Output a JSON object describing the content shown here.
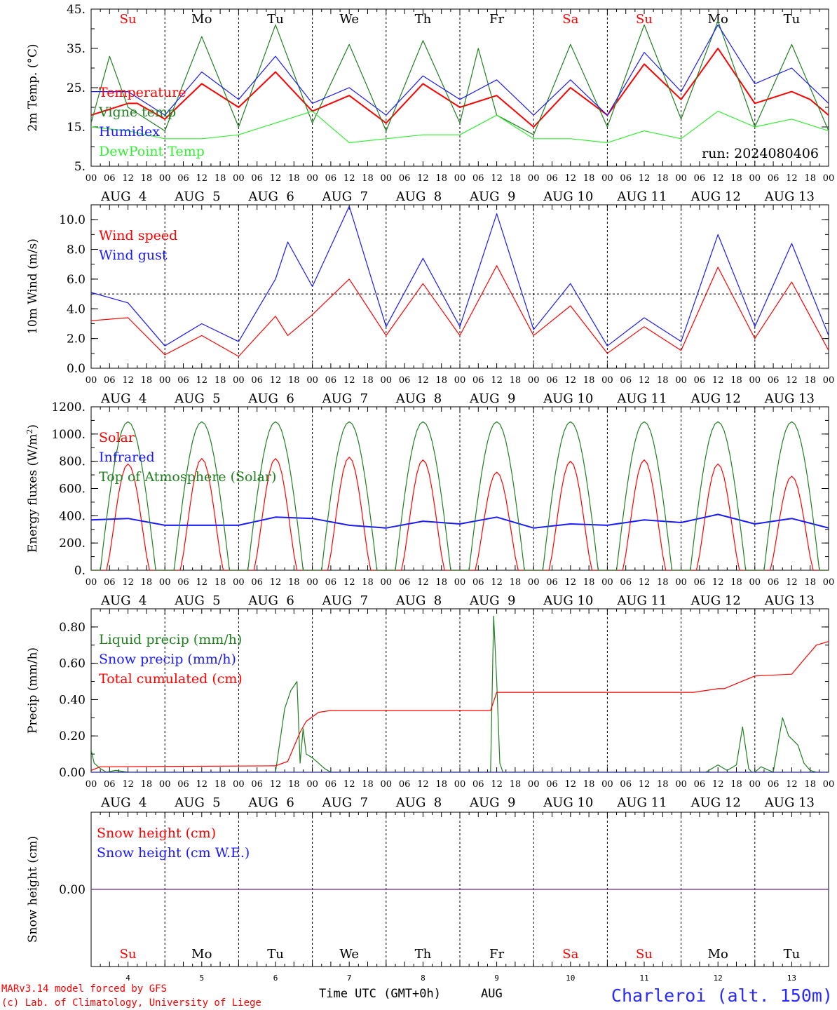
{
  "colors": {
    "red": "#ff0000",
    "green": "#208020",
    "blue": "#1a1aff",
    "lightgreen": "#33ee33",
    "purple": "#8040a0",
    "axis": "#000000",
    "station": "#2a2aff"
  },
  "days": {
    "labels": [
      "Su",
      "Mo",
      "Tu",
      "We",
      "Th",
      "Fr",
      "Sa",
      "Su",
      "Mo",
      "Tu"
    ],
    "label_colors": [
      "red",
      "black",
      "black",
      "black",
      "black",
      "black",
      "red",
      "red",
      "black",
      "black"
    ],
    "dates": [
      "AUG  4",
      "AUG  5",
      "AUG  6",
      "AUG  7",
      "AUG  8",
      "AUG  9",
      "AUG 10",
      "AUG 11",
      "AUG 12",
      "AUG 13"
    ],
    "day_numbers": [
      "4",
      "5",
      "6",
      "7",
      "8",
      "9",
      "10",
      "11",
      "12",
      "13"
    ]
  },
  "hour_ticks": [
    "00",
    "06",
    "12",
    "18"
  ],
  "run_label": "run: 2024080406",
  "footer": {
    "model": "MARv3.14 model forced by GFS",
    "copyright": "(c) Lab. of Climatology, University of Liege",
    "xlabel": "Time UTC (GMT+0h)",
    "month": "AUG",
    "station": "Charleroi (alt. 150m)"
  },
  "chart_data": [
    {
      "type": "line",
      "ylabel": "2m Temp. (°C)",
      "ylim": [
        5,
        45
      ],
      "yticks": [
        "5.",
        "15.",
        "25.",
        "35.",
        "45."
      ],
      "legend": [
        "Temperature",
        "Vigne temp",
        "Humidex",
        "DewPoint Temp"
      ],
      "x": "hours since AUG 4 00 UTC",
      "series": [
        {
          "name": "Temperature",
          "color": "red",
          "x": [
            0,
            12,
            15,
            24,
            36,
            48,
            60,
            72,
            84,
            96,
            108,
            120,
            132,
            144,
            156,
            168,
            180,
            192,
            204,
            216,
            228,
            234,
            240
          ],
          "values": [
            18,
            21,
            21,
            17,
            26,
            20,
            29,
            19,
            23,
            16,
            26,
            20,
            23,
            15,
            25,
            18,
            31,
            22,
            35,
            21,
            24,
            22,
            18
          ]
        },
        {
          "name": "Vigne temp",
          "color": "green",
          "x": [
            0,
            6,
            12,
            24,
            36,
            48,
            60,
            72,
            84,
            96,
            108,
            120,
            126,
            132,
            144,
            156,
            168,
            180,
            192,
            204,
            216,
            228,
            240
          ],
          "values": [
            16,
            33,
            20,
            14,
            38,
            15,
            41,
            16,
            36,
            14,
            37,
            16,
            35,
            18,
            13,
            36,
            15,
            41,
            17,
            42,
            15,
            36,
            14
          ]
        },
        {
          "name": "Humidex",
          "color": "blue",
          "x": [
            0,
            12,
            24,
            36,
            48,
            60,
            72,
            84,
            96,
            108,
            120,
            132,
            144,
            156,
            168,
            180,
            192,
            204,
            216,
            228,
            240
          ],
          "values": [
            24,
            24,
            18,
            29,
            22,
            33,
            21,
            25,
            18,
            28,
            22,
            27,
            18,
            27,
            18,
            34,
            24,
            41,
            26,
            30,
            21
          ]
        },
        {
          "name": "DewPoint Temp",
          "color": "lightgreen",
          "x": [
            0,
            12,
            24,
            36,
            48,
            60,
            72,
            84,
            96,
            108,
            120,
            132,
            144,
            156,
            168,
            180,
            192,
            204,
            216,
            228,
            240
          ],
          "values": [
            15,
            14,
            12,
            12,
            13,
            16,
            19,
            11,
            12,
            13,
            13,
            18,
            12,
            12,
            11,
            14,
            12,
            19,
            15,
            17,
            14
          ]
        }
      ]
    },
    {
      "type": "line",
      "ylabel": "10m Wind (m/s)",
      "ylim": [
        0,
        11
      ],
      "yticks": [
        "0.0",
        "2.0",
        "4.0",
        "6.0",
        "8.0",
        "10.0"
      ],
      "reference_line": 5,
      "legend": [
        "Wind speed",
        "Wind gust"
      ],
      "series": [
        {
          "name": "Wind speed",
          "color": "red",
          "x": [
            0,
            12,
            24,
            36,
            48,
            60,
            64,
            72,
            84,
            96,
            108,
            120,
            132,
            144,
            156,
            168,
            180,
            192,
            204,
            216,
            228,
            240
          ],
          "values": [
            3.2,
            3.4,
            0.9,
            2.2,
            0.8,
            3.5,
            2.2,
            3.6,
            6.0,
            2.2,
            5.7,
            2.2,
            6.9,
            2.2,
            4.2,
            1.0,
            2.8,
            1.2,
            6.8,
            2.0,
            5.8,
            1.2
          ]
        },
        {
          "name": "Wind gust",
          "color": "blue",
          "x": [
            0,
            12,
            24,
            36,
            48,
            60,
            64,
            72,
            84,
            96,
            108,
            120,
            132,
            144,
            156,
            168,
            180,
            192,
            204,
            216,
            228,
            240
          ],
          "values": [
            5.1,
            4.4,
            1.5,
            3.0,
            1.8,
            6.0,
            8.5,
            5.5,
            10.9,
            2.8,
            7.4,
            2.8,
            10.4,
            2.6,
            5.7,
            1.5,
            3.4,
            1.8,
            9.0,
            2.8,
            8.4,
            2.2
          ]
        }
      ]
    },
    {
      "type": "line",
      "ylabel": "Energy fluxes (W/m²)",
      "ylim": [
        0,
        1200
      ],
      "yticks": [
        "0.",
        "200.",
        "400.",
        "600.",
        "800.",
        "1000.",
        "1200."
      ],
      "legend": [
        "Solar",
        "Infrared",
        "Top of Atmosphere (Solar)"
      ],
      "solar_peaks": [
        780,
        820,
        820,
        830,
        810,
        720,
        800,
        810,
        780,
        690
      ],
      "toa_peak": 1090,
      "series": [
        {
          "name": "Solar",
          "color": "red",
          "x": [
            0,
            12,
            24,
            36,
            48,
            60,
            72,
            84,
            96,
            108,
            120,
            132,
            144,
            156,
            168,
            180,
            192,
            204,
            216,
            228,
            240
          ],
          "values": [
            0,
            780,
            0,
            820,
            0,
            820,
            0,
            830,
            0,
            810,
            0,
            720,
            0,
            800,
            0,
            810,
            0,
            780,
            0,
            690,
            0
          ]
        },
        {
          "name": "Infrared",
          "color": "blue",
          "x": [
            0,
            12,
            24,
            48,
            60,
            72,
            84,
            96,
            108,
            120,
            132,
            144,
            156,
            168,
            180,
            192,
            204,
            216,
            228,
            240
          ],
          "values": [
            370,
            380,
            330,
            330,
            390,
            380,
            330,
            310,
            360,
            340,
            390,
            310,
            340,
            330,
            370,
            350,
            410,
            340,
            380,
            310
          ]
        },
        {
          "name": "Top of Atmosphere (Solar)",
          "color": "green",
          "x": [
            0,
            12,
            24,
            36,
            48,
            60,
            72,
            84,
            96,
            108,
            120,
            132,
            144,
            156,
            168,
            180,
            192,
            204,
            216,
            228,
            240
          ],
          "values": [
            0,
            1090,
            0,
            1090,
            0,
            1090,
            0,
            1090,
            0,
            1085,
            0,
            1085,
            0,
            1080,
            0,
            1080,
            0,
            1075,
            0,
            1075,
            0
          ]
        }
      ]
    },
    {
      "type": "line",
      "ylabel": "Precip (mm/h)",
      "ylim": [
        0,
        0.9
      ],
      "yticks": [
        "0.00",
        "0.20",
        "0.40",
        "0.60",
        "0.80"
      ],
      "legend": [
        "Liquid precip (mm/h)",
        "Snow precip (mm/h)",
        "Total cumulated (cm)"
      ],
      "series": [
        {
          "name": "Liquid precip (mm/h)",
          "color": "green",
          "x": [
            0,
            1,
            3,
            5,
            8,
            12,
            60,
            63,
            65,
            67,
            68,
            69,
            70,
            72,
            74,
            76,
            78,
            80,
            130,
            131,
            132,
            133,
            134,
            200,
            204,
            207,
            210,
            212,
            214,
            215,
            216,
            218,
            222,
            225,
            227,
            230,
            232,
            234,
            236,
            238,
            240
          ],
          "values": [
            0.12,
            0.05,
            0.02,
            0.0,
            0.01,
            0.0,
            0.0,
            0.35,
            0.45,
            0.5,
            0.05,
            0.24,
            0.1,
            0.08,
            0.05,
            0.02,
            0.0,
            0.0,
            0.0,
            0.86,
            0.5,
            0.05,
            0.0,
            0.0,
            0.04,
            0.01,
            0.04,
            0.25,
            0.02,
            0.0,
            0.0,
            0.03,
            0.0,
            0.3,
            0.2,
            0.15,
            0.05,
            0.01,
            0.0,
            0.0,
            0.0
          ]
        },
        {
          "name": "Snow precip (mm/h)",
          "color": "blue",
          "x": [
            0,
            240
          ],
          "values": [
            0,
            0
          ]
        },
        {
          "name": "Total cumulated (cm)",
          "color": "red",
          "x": [
            0,
            3,
            60,
            64,
            68,
            70,
            74,
            78,
            84,
            130,
            132,
            134,
            196,
            204,
            206,
            216,
            228,
            232,
            236,
            240
          ],
          "values": [
            0.01,
            0.03,
            0.035,
            0.06,
            0.22,
            0.28,
            0.33,
            0.34,
            0.34,
            0.34,
            0.44,
            0.44,
            0.44,
            0.46,
            0.46,
            0.53,
            0.54,
            0.62,
            0.7,
            0.72
          ]
        }
      ]
    },
    {
      "type": "line",
      "ylabel": "Snow height (cm)",
      "yticks": [
        "0.00"
      ],
      "legend": [
        "Snow height (cm)",
        "Snow height (cm W.E.)"
      ],
      "series": [
        {
          "name": "Snow height (cm)",
          "color": "red",
          "x": [
            0,
            240
          ],
          "values": [
            0,
            0
          ]
        },
        {
          "name": "Snow height (cm W.E.)",
          "color": "blue",
          "x": [
            0,
            240
          ],
          "values": [
            0,
            0
          ]
        }
      ]
    }
  ]
}
